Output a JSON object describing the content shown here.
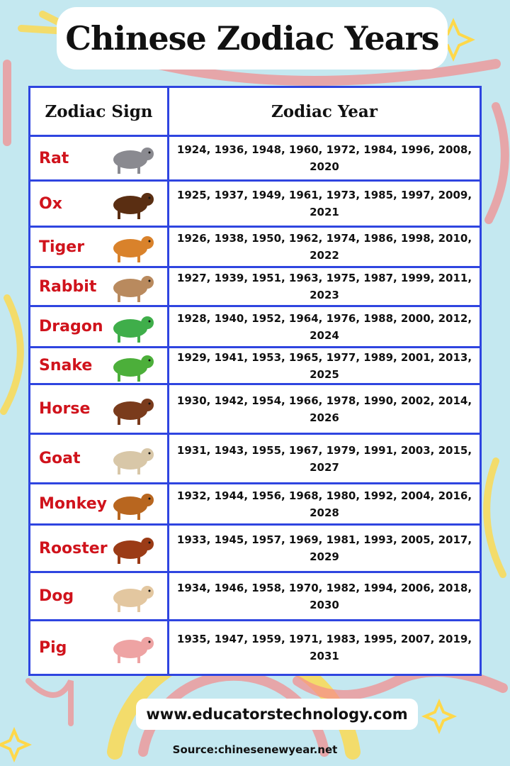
{
  "title": "Chinese Zodiac Years",
  "table": {
    "headers": [
      "Zodiac Sign",
      "Zodiac Year"
    ],
    "rows": [
      {
        "sign": "Rat",
        "years": "1924, 1936, 1948, 1960, 1972, 1984, 1996, 2008, 2020",
        "icon": "rat-icon",
        "color": "#8a8a90"
      },
      {
        "sign": "Ox",
        "years": "1925, 1937, 1949, 1961, 1973, 1985, 1997, 2009, 2021",
        "icon": "ox-icon",
        "color": "#5a2e12"
      },
      {
        "sign": "Tiger",
        "years": "1926, 1938, 1950, 1962, 1974, 1986, 1998, 2010, 2022",
        "icon": "tiger-icon",
        "color": "#d9822b"
      },
      {
        "sign": "Rabbit",
        "years": "1927, 1939, 1951, 1963, 1975, 1987, 1999, 2011, 2023",
        "icon": "rabbit-icon",
        "color": "#b98a5e"
      },
      {
        "sign": "Dragon",
        "years": "1928, 1940, 1952, 1964, 1976, 1988, 2000, 2012, 2024",
        "icon": "dragon-icon",
        "color": "#3fae4a"
      },
      {
        "sign": "Snake",
        "years": "1929, 1941, 1953, 1965, 1977, 1989, 2001, 2013, 2025",
        "icon": "snake-icon",
        "color": "#4caf3a"
      },
      {
        "sign": "Horse",
        "years": "1930, 1942, 1954, 1966, 1978, 1990, 2002, 2014, 2026",
        "icon": "horse-icon",
        "color": "#7a3b1c"
      },
      {
        "sign": "Goat",
        "years": "1931, 1943, 1955, 1967, 1979, 1991, 2003, 2015, 2027",
        "icon": "goat-icon",
        "color": "#d8c7a8"
      },
      {
        "sign": "Monkey",
        "years": "1932, 1944, 1956, 1968, 1980, 1992, 2004, 2016, 2028",
        "icon": "monkey-icon",
        "color": "#b8661f"
      },
      {
        "sign": "Rooster",
        "years": "1933, 1945, 1957, 1969, 1981, 1993, 2005, 2017, 2029",
        "icon": "rooster-icon",
        "color": "#9b3b16"
      },
      {
        "sign": "Dog",
        "years": "1934, 1946, 1958, 1970, 1982, 1994, 2006, 2018, 2030",
        "icon": "dog-icon",
        "color": "#e3c7a0"
      },
      {
        "sign": "Pig",
        "years": "1935, 1947, 1959, 1971, 1983, 1995, 2007, 2019, 2031",
        "icon": "pig-icon",
        "color": "#eea3a3"
      }
    ]
  },
  "footer": {
    "url": "www.educatorstechnology.com",
    "source": "Source:chinesenewyear.net"
  }
}
